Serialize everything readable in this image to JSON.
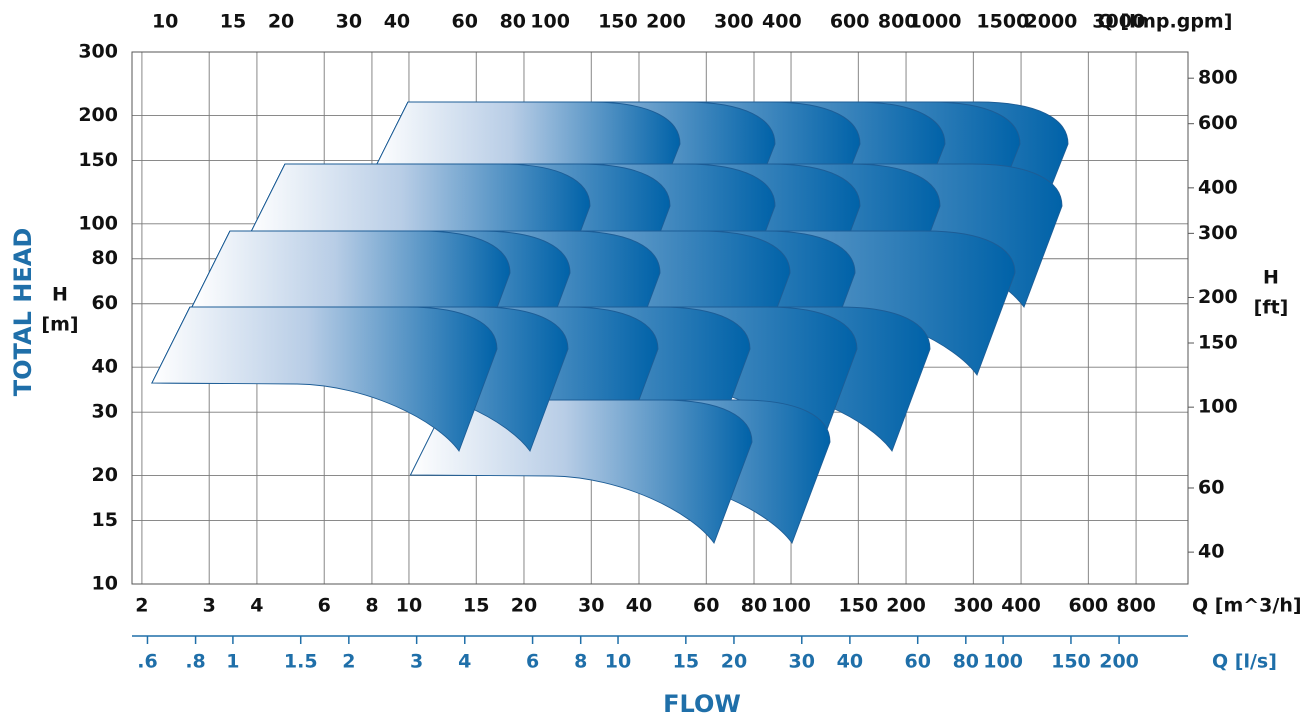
{
  "chart_data": {
    "type": "performance-range",
    "log_x": true,
    "log_y": true,
    "grid": true,
    "xlabel": "Q [m^3/h]",
    "xlim": [
      1.884,
      1094
    ],
    "xticks": [
      2,
      3,
      4,
      6,
      8,
      10,
      15,
      20,
      30,
      40,
      60,
      80,
      100,
      150,
      200,
      300,
      400,
      600,
      800
    ],
    "x_top": {
      "label": "Q [Imp.gpm]",
      "lim": [
        8.2,
        4540
      ],
      "ticks": [
        10,
        15,
        20,
        30,
        40,
        60,
        80,
        100,
        150,
        200,
        300,
        400,
        600,
        800,
        1000,
        1500,
        2000,
        3000
      ]
    },
    "x_bottom2": {
      "label": "Q [l/s]",
      "lim": [
        0.547,
        302
      ],
      "ticks": [
        {
          "value": 0.6,
          "label": ".6"
        },
        {
          "value": 0.8,
          "label": ".8"
        },
        1,
        1.5,
        2,
        3,
        4,
        6,
        8,
        10,
        15,
        20,
        30,
        40,
        60,
        80,
        100,
        150,
        200
      ]
    },
    "xtitle": "FLOW",
    "ylabel": "TOTAL HEAD",
    "y_symbol": "H",
    "y_unit": "[m]",
    "ylim": [
      10,
      300
    ],
    "yticks": [
      10,
      15,
      20,
      30,
      40,
      60,
      80,
      100,
      150,
      200,
      300
    ],
    "y2_symbol": "H",
    "y2_unit": "[ft]",
    "y2lim": [
      32.7,
      944
    ],
    "y2ticks": [
      40,
      60,
      100,
      150,
      200,
      300,
      400,
      600,
      800
    ],
    "color": "#0062a8"
  }
}
